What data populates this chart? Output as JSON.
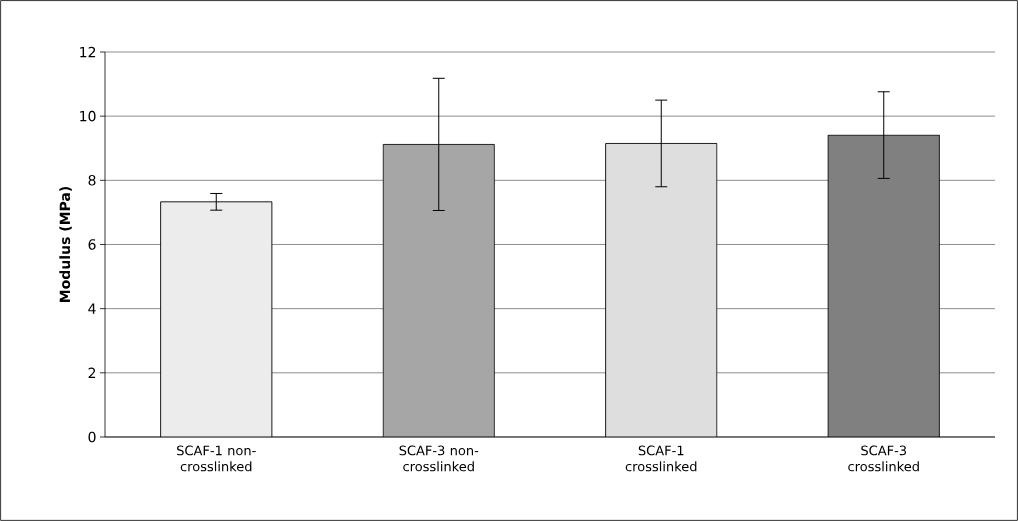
{
  "chart_data": {
    "type": "bar",
    "ylabel": "Modulus (MPa)",
    "categories": [
      "SCAF-1 non-crosslinked",
      "SCAF-3 non-crosslinked",
      "SCAF-1 crosslinked",
      "SCAF-3 crosslinked"
    ],
    "values": [
      7.33,
      9.12,
      9.15,
      9.41
    ],
    "errors": [
      0.26,
      2.06,
      1.35,
      1.35
    ],
    "colors": [
      "#ececec",
      "#a6a6a6",
      "#dedede",
      "#808080"
    ],
    "ylim": [
      0,
      12
    ],
    "yticks": [
      0,
      2,
      4,
      6,
      8,
      10,
      12
    ],
    "grid": "y"
  }
}
